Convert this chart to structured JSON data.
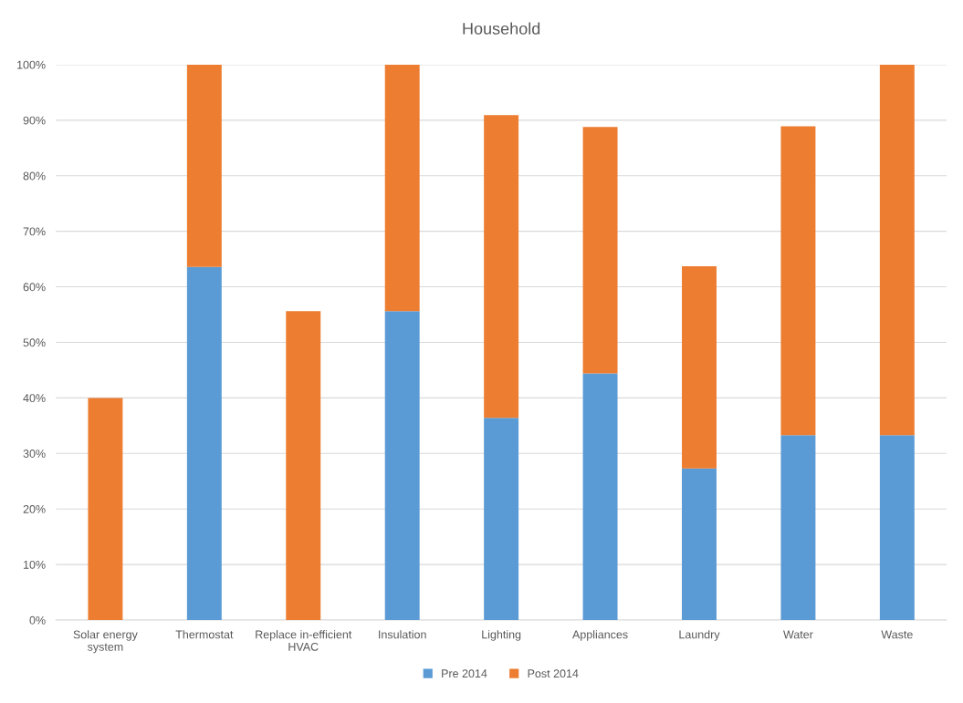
{
  "chart_data": {
    "type": "bar",
    "title": "Household",
    "stacked": true,
    "categories": [
      "Solar energy\nsystem",
      "Thermostat",
      "Replace in-efficient\nHVAC",
      "Insulation",
      "Lighting",
      "Appliances",
      "Laundry",
      "Water",
      "Waste"
    ],
    "series": [
      {
        "name": "Pre 2014",
        "color": "#5b9bd5",
        "values": [
          0,
          63.6,
          0,
          55.6,
          36.4,
          44.4,
          27.3,
          33.3,
          33.3
        ]
      },
      {
        "name": "Post 2014",
        "color": "#ed7d31",
        "values": [
          40,
          36.4,
          55.6,
          44.4,
          54.5,
          44.4,
          36.4,
          55.6,
          66.7
        ]
      }
    ],
    "ylim": [
      0,
      100
    ],
    "yticks": [
      {
        "value": 0,
        "label": "0%"
      },
      {
        "value": 10,
        "label": "10%"
      },
      {
        "value": 20,
        "label": "20%"
      },
      {
        "value": 30,
        "label": "30%"
      },
      {
        "value": 40,
        "label": "40%"
      },
      {
        "value": 50,
        "label": "50%"
      },
      {
        "value": 60,
        "label": "60%"
      },
      {
        "value": 70,
        "label": "70%"
      },
      {
        "value": 80,
        "label": "80%"
      },
      {
        "value": 90,
        "label": "90%"
      },
      {
        "value": 100,
        "label": "100%"
      }
    ],
    "grid": "y",
    "legend": "bottom"
  }
}
